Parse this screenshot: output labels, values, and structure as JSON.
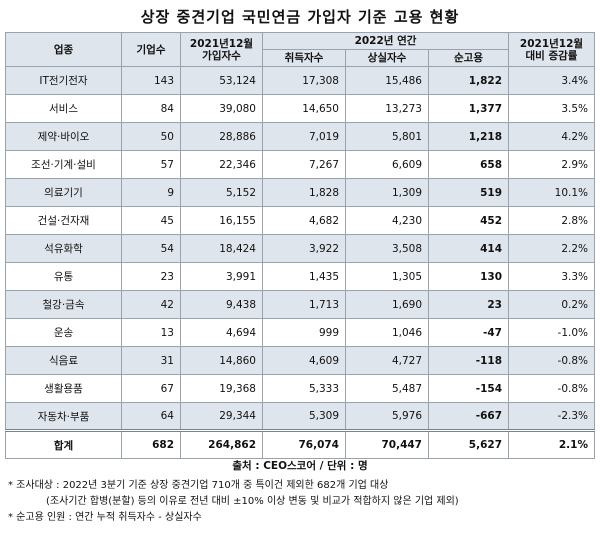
{
  "title": "상장 중견기업 국민연금 가입자 기준 고용 현황",
  "header": {
    "industry": "업종",
    "companies": "기업수",
    "dec2021_top": "2021년12월",
    "dec2021_bottom": "가입자수",
    "annual2022": "2022년 연간",
    "acquired": "취득자수",
    "lost": "상실자수",
    "net": "순고용",
    "change_top": "2021년12월",
    "change_bottom": "대비 증감률"
  },
  "rows": [
    {
      "industry": "IT전기전자",
      "companies": "143",
      "members": "53,124",
      "acquired": "17,308",
      "lost": "15,486",
      "net": "1,822",
      "change": "3.4%"
    },
    {
      "industry": "서비스",
      "companies": "84",
      "members": "39,080",
      "acquired": "14,650",
      "lost": "13,273",
      "net": "1,377",
      "change": "3.5%"
    },
    {
      "industry": "제약·바이오",
      "companies": "50",
      "members": "28,886",
      "acquired": "7,019",
      "lost": "5,801",
      "net": "1,218",
      "change": "4.2%"
    },
    {
      "industry": "조선·기계·설비",
      "companies": "57",
      "members": "22,346",
      "acquired": "7,267",
      "lost": "6,609",
      "net": "658",
      "change": "2.9%"
    },
    {
      "industry": "의료기기",
      "companies": "9",
      "members": "5,152",
      "acquired": "1,828",
      "lost": "1,309",
      "net": "519",
      "change": "10.1%"
    },
    {
      "industry": "건설·건자재",
      "companies": "45",
      "members": "16,155",
      "acquired": "4,682",
      "lost": "4,230",
      "net": "452",
      "change": "2.8%"
    },
    {
      "industry": "석유화학",
      "companies": "54",
      "members": "18,424",
      "acquired": "3,922",
      "lost": "3,508",
      "net": "414",
      "change": "2.2%"
    },
    {
      "industry": "유통",
      "companies": "23",
      "members": "3,991",
      "acquired": "1,435",
      "lost": "1,305",
      "net": "130",
      "change": "3.3%"
    },
    {
      "industry": "철강·금속",
      "companies": "42",
      "members": "9,438",
      "acquired": "1,713",
      "lost": "1,690",
      "net": "23",
      "change": "0.2%"
    },
    {
      "industry": "운송",
      "companies": "13",
      "members": "4,694",
      "acquired": "999",
      "lost": "1,046",
      "net": "-47",
      "change": "-1.0%"
    },
    {
      "industry": "식음료",
      "companies": "31",
      "members": "14,860",
      "acquired": "4,609",
      "lost": "4,727",
      "net": "-118",
      "change": "-0.8%"
    },
    {
      "industry": "생활용품",
      "companies": "67",
      "members": "19,368",
      "acquired": "5,333",
      "lost": "5,487",
      "net": "-154",
      "change": "-0.8%"
    },
    {
      "industry": "자동차·부품",
      "companies": "64",
      "members": "29,344",
      "acquired": "5,309",
      "lost": "5,976",
      "net": "-667",
      "change": "-2.3%"
    }
  ],
  "total": {
    "industry": "합계",
    "companies": "682",
    "members": "264,862",
    "acquired": "76,074",
    "lost": "70,447",
    "net": "5,627",
    "change": "2.1%"
  },
  "source": "출처 : CEO스코어 / 단위 : 명",
  "notes": {
    "line1": "* 조사대상 : 2022년 3분기 기준 상장 중견기업 710개 중 특이건 제외한 682개 기업 대상",
    "line2": "(조사기간 합병(분할) 등의 이유로 전년 대비 ±10% 이상 변동 및 비교가 적합하지 않은 기업 제외)",
    "line3": "* 순고용 인원 : 연간 누적 취득자수 - 상실자수"
  },
  "colors": {
    "header_bg": "#dfe5ec",
    "row_shade": "#dfe5ec",
    "border": "#9aa3ad"
  }
}
